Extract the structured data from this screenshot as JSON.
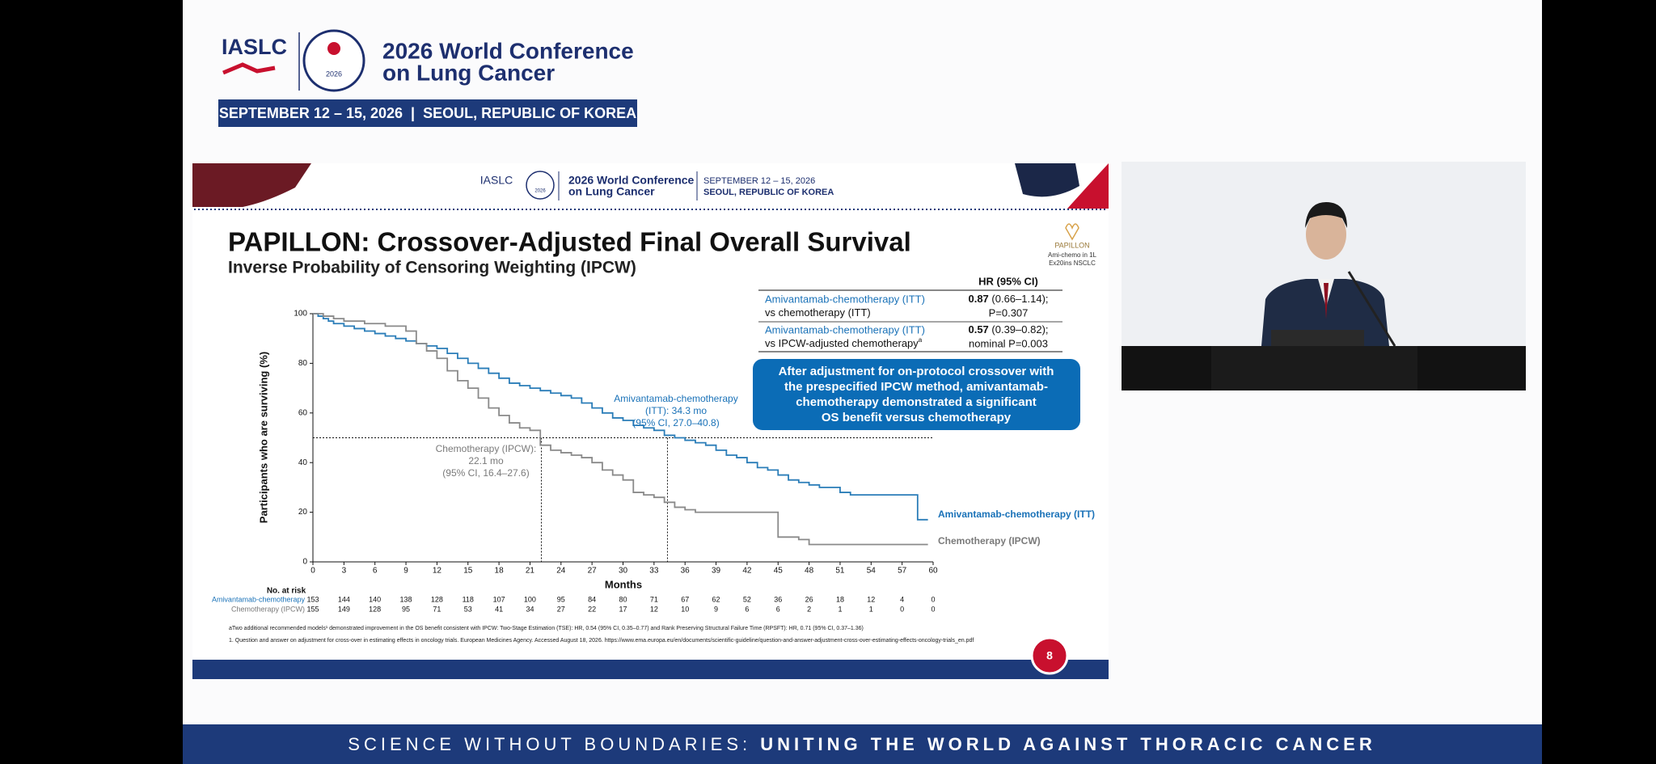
{
  "header": {
    "org": "IASLC",
    "logo_year": "2026",
    "title_line1": "2026 World Conference",
    "title_line2": "on Lung Cancer",
    "dates": "SEPTEMBER 12 – 15, 2026  |  SEOUL, REPUBLIC OF KOREA"
  },
  "slide": {
    "header": {
      "org": "IASLC",
      "logo_year": "2026",
      "conf_line1": "2026 World Conference",
      "conf_line2": "on Lung Cancer",
      "date_line1": "SEPTEMBER 12 – 15, 2026",
      "date_line2": "SEOUL, REPUBLIC OF KOREA"
    },
    "title": "PAPILLON: Crossover-Adjusted Final Overall Survival",
    "subtitle": "Inverse Probability of Censoring Weighting (IPCW)",
    "study_logo": {
      "name": "PAPILLON",
      "line1": "Ami-chemo in 1L",
      "line2": "Ex20ins NSCLC"
    },
    "hr_table": {
      "header": "HR (95% CI)",
      "rows": [
        {
          "arm": "Amivantamab-chemotherapy (ITT)",
          "comparator": "vs chemotherapy (ITT)",
          "comparator_sup": "",
          "hr": "0.87",
          "ci": " (0.66–1.14);",
          "p": "P=0.307"
        },
        {
          "arm": "Amivantamab-chemotherapy (ITT)",
          "comparator": "vs IPCW-adjusted chemotherapy",
          "comparator_sup": "a",
          "hr": "0.57",
          "ci": " (0.39–0.82);",
          "p": "nominal P=0.003"
        }
      ]
    },
    "callout": [
      "After adjustment for on-protocol crossover with",
      "the prespecified IPCW method, amivantamab-",
      "chemotherapy demonstrated a significant",
      "OS benefit versus chemotherapy"
    ],
    "risk_table": {
      "title": "No. at risk",
      "rows": [
        {
          "label": "Amivantamab-chemotherapy",
          "color": "#1a72b8",
          "values": [
            153,
            144,
            140,
            138,
            128,
            118,
            107,
            100,
            95,
            84,
            80,
            71,
            67,
            62,
            52,
            36,
            26,
            18,
            12,
            4,
            0
          ]
        },
        {
          "label": "Chemotherapy (IPCW)",
          "color": "#7a7a7a",
          "values": [
            155,
            149,
            128,
            95,
            71,
            53,
            41,
            34,
            27,
            22,
            17,
            12,
            10,
            9,
            6,
            6,
            2,
            1,
            1,
            0,
            0
          ]
        }
      ]
    },
    "footnotes": [
      "aTwo additional recommended models¹ demonstrated improvement in the OS benefit consistent with IPCW: Two-Stage Estimation (TSE): HR, 0.54 (95% CI, 0.35–0.77) and Rank Preserving Structural Failure Time (RPSFT): HR, 0.71 (95% CI, 0.37–1.36)",
      "1. Question and answer on adjustment for cross-over in estimating effects in oncology trials. European Medicines Agency. Accessed August 18, 2026. https://www.ema.europa.eu/en/documents/scientific-guideline/question-and-answer-adjustment-cross-over-estimating-effects-oncology-trials_en.pdf"
    ],
    "page_number": "8"
  },
  "chart_data": {
    "type": "step",
    "x_label": "Months",
    "y_label": "Participants who are surviving (%)",
    "xlim": [
      0,
      60
    ],
    "ylim": [
      0,
      100
    ],
    "xticks": [
      0,
      3,
      6,
      9,
      12,
      15,
      18,
      21,
      24,
      27,
      30,
      33,
      36,
      39,
      42,
      45,
      48,
      51,
      54,
      57,
      60
    ],
    "yticks": [
      0,
      20,
      40,
      60,
      80,
      100
    ],
    "reference_lines": {
      "y": 50,
      "x": [
        22.1,
        34.3
      ]
    },
    "annotations": [
      {
        "lines": [
          "Amivantamab-chemotherapy",
          "(ITT): 34.3 mo",
          "(95% CI, 27.0–40.8)"
        ],
        "color": "#1a72b8"
      },
      {
        "lines": [
          "Chemotherapy (IPCW):",
          "22.1 mo",
          "(95% CI, 16.4–27.6)"
        ],
        "color": "#7a7a7a"
      }
    ],
    "series": [
      {
        "name": "Amivantamab-chemotherapy (ITT)",
        "color": "#2a7db8",
        "x": [
          0,
          0.5,
          1,
          1.5,
          2,
          3,
          4,
          5,
          6,
          7,
          8,
          9,
          10,
          11,
          12,
          13,
          14,
          15,
          16,
          17,
          18,
          19,
          20,
          21,
          22,
          23,
          24,
          25,
          26,
          27,
          28,
          29,
          30,
          31,
          32,
          33,
          34,
          35,
          36,
          37,
          38,
          39,
          40,
          41,
          42,
          43,
          44,
          45,
          46,
          47,
          48,
          49,
          50,
          51,
          52,
          56,
          58.5,
          59.5
        ],
        "values": [
          100,
          99,
          98,
          97,
          96,
          95,
          94,
          93,
          92,
          91,
          90,
          89,
          88,
          87,
          86,
          84,
          82,
          80,
          78,
          76,
          74,
          72,
          71,
          70,
          69,
          68,
          67,
          66,
          64,
          62,
          60,
          58,
          57,
          55,
          54,
          53,
          51,
          50,
          49,
          48,
          47,
          45,
          43,
          42,
          40,
          38,
          37,
          35,
          33,
          32,
          31,
          30,
          30,
          28,
          27,
          27,
          17,
          17
        ]
      },
      {
        "name": "Chemotherapy (IPCW)",
        "color": "#8a8a8a",
        "x": [
          0,
          1,
          2,
          3,
          5,
          7,
          9,
          10,
          11,
          12,
          13,
          14,
          15,
          16,
          17,
          18,
          19,
          20,
          21,
          22,
          23,
          24,
          25,
          26,
          27,
          28,
          29,
          30,
          31,
          32,
          33,
          34,
          35,
          36,
          37,
          44,
          45,
          47,
          48,
          59.5
        ],
        "values": [
          100,
          99,
          98,
          97,
          96,
          95,
          93,
          88,
          85,
          82,
          77,
          73,
          70,
          66,
          62,
          59,
          56,
          54,
          53,
          47,
          45,
          44,
          43,
          42,
          40,
          37,
          35,
          33,
          28,
          27,
          26,
          24,
          22,
          21,
          20,
          20,
          10,
          9,
          7,
          7
        ]
      }
    ]
  },
  "footer": {
    "lead": "SCIENCE WITHOUT BOUNDARIES: ",
    "tagline": "UNITING THE WORLD AGAINST THORACIC CANCER"
  }
}
